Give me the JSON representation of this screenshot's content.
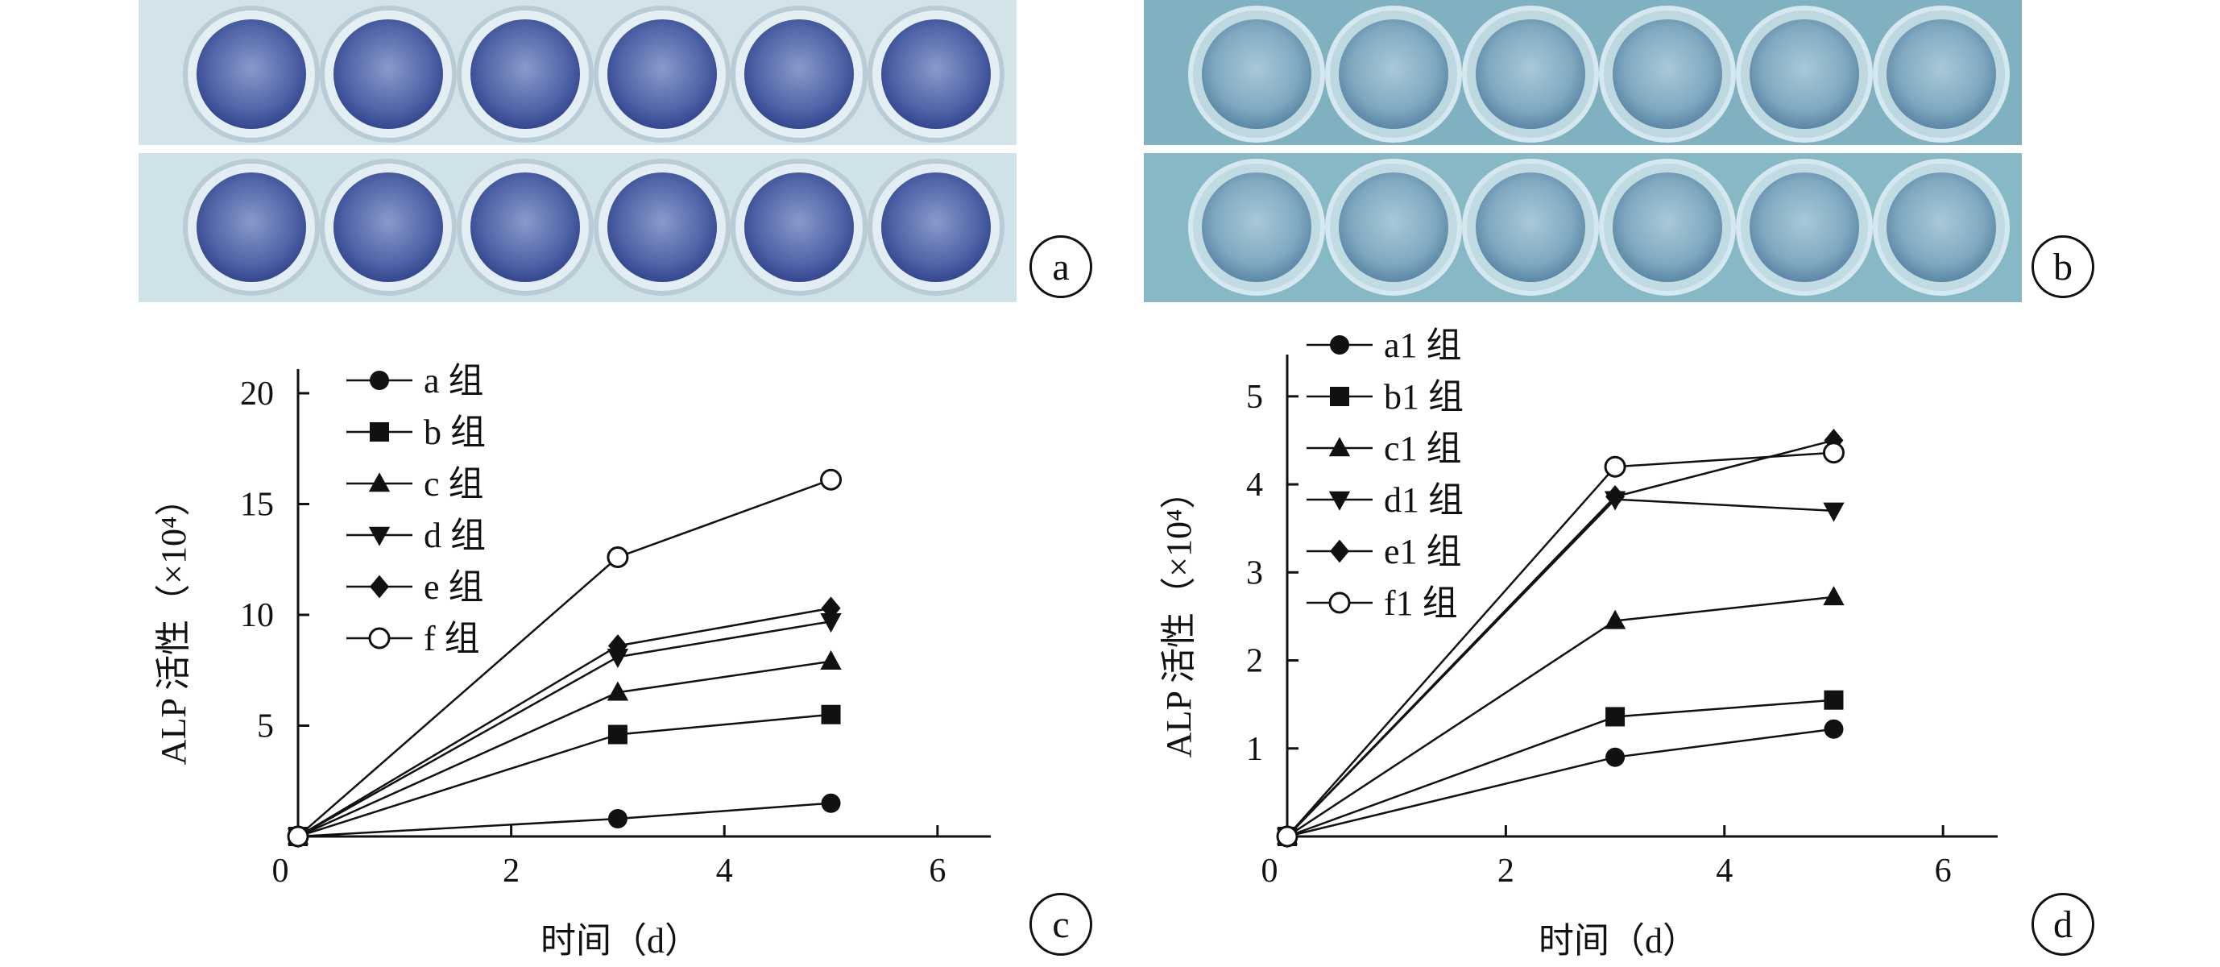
{
  "panel_labels": [
    "a",
    "b",
    "c",
    "d"
  ],
  "colors": {
    "axis": "#111111",
    "plate_a_stain": "#3b4f9c",
    "plate_b_stain": "#4a7ea0",
    "plate_a_bg": "#d2e4ea",
    "plate_b_bg": "#7fb1c0"
  },
  "chart_data": [
    {
      "type": "line",
      "panel": "c",
      "title": "",
      "xlabel": "时间（d）",
      "ylabel": "ALP 活性（×10⁴）",
      "xlim": [
        0,
        6.5
      ],
      "ylim": [
        0,
        20
      ],
      "xticks": [
        2,
        4,
        6
      ],
      "yticks": [
        5,
        10,
        15,
        20
      ],
      "origin_label": "0",
      "grid": false,
      "legend_position": "top-left",
      "x": [
        0,
        3,
        5
      ],
      "series": [
        {
          "name": "a 组",
          "marker": "circle",
          "values": [
            0,
            0.8,
            1.5
          ]
        },
        {
          "name": "b 组",
          "marker": "square",
          "values": [
            0,
            4.6,
            5.5
          ]
        },
        {
          "name": "c 组",
          "marker": "triangle-up",
          "values": [
            0,
            6.5,
            7.9
          ]
        },
        {
          "name": "d 组",
          "marker": "triangle-down",
          "values": [
            0,
            8.1,
            9.7
          ]
        },
        {
          "name": "e 组",
          "marker": "diamond",
          "values": [
            0,
            8.6,
            10.3
          ]
        },
        {
          "name": "f 组",
          "marker": "open-circle",
          "values": [
            0,
            12.6,
            16.1
          ]
        }
      ]
    },
    {
      "type": "line",
      "panel": "d",
      "title": "",
      "xlabel": "时间（d）",
      "ylabel": "ALP 活性（×10⁴）",
      "xlim": [
        0,
        6.5
      ],
      "ylim": [
        0,
        5.2
      ],
      "xticks": [
        2,
        4,
        6
      ],
      "yticks": [
        1,
        2,
        3,
        4,
        5
      ],
      "origin_label": "0",
      "grid": false,
      "legend_position": "top-left",
      "x": [
        0,
        3,
        5
      ],
      "series": [
        {
          "name": "a1 组",
          "marker": "circle",
          "values": [
            0,
            0.9,
            1.22
          ]
        },
        {
          "name": "b1 组",
          "marker": "square",
          "values": [
            0,
            1.36,
            1.55
          ]
        },
        {
          "name": "c1 组",
          "marker": "triangle-up",
          "values": [
            0,
            2.45,
            2.72
          ]
        },
        {
          "name": "d1 组",
          "marker": "triangle-down",
          "values": [
            0,
            3.83,
            3.7
          ]
        },
        {
          "name": "e1 组",
          "marker": "diamond",
          "values": [
            0,
            3.86,
            4.5
          ]
        },
        {
          "name": "f1 组",
          "marker": "open-circle",
          "values": [
            0,
            4.2,
            4.36
          ]
        }
      ]
    }
  ]
}
